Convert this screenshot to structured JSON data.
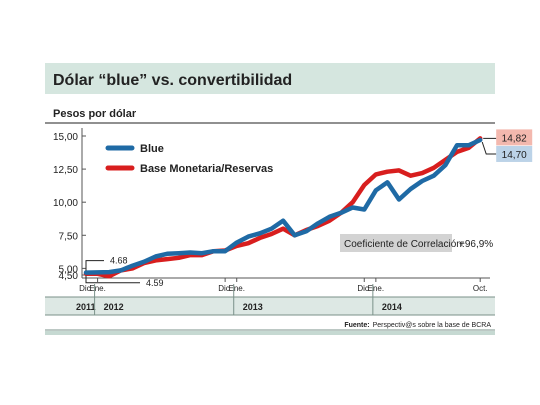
{
  "chart_data": {
    "type": "line",
    "title": "Dólar “blue” vs. convertibilidad",
    "ylabel": "Pesos por dólar",
    "ylim": [
      4.5,
      15.0
    ],
    "yticks": [
      15.0,
      12.5,
      10.0,
      7.5,
      5.0,
      4.5
    ],
    "ytick_labels": [
      "15,00",
      "12,50",
      "10,00",
      "7,50",
      "5,00",
      "4,50"
    ],
    "x_unit": "months since Dec 2011",
    "xlim": [
      0,
      34.5
    ],
    "x_month_labels": [
      {
        "x": 0,
        "label": "Dic."
      },
      {
        "x": 1,
        "label": "Ene."
      },
      {
        "x": 12,
        "label": "Dic."
      },
      {
        "x": 13,
        "label": "Ene."
      },
      {
        "x": 24,
        "label": "Dic."
      },
      {
        "x": 25,
        "label": "Ene."
      },
      {
        "x": 34,
        "label": "Oct."
      }
    ],
    "x_year_labels": [
      {
        "from": 0,
        "to": 1,
        "label": "2011"
      },
      {
        "from": 1,
        "to": 13,
        "label": "2012"
      },
      {
        "from": 13,
        "to": 25,
        "label": "2013"
      },
      {
        "from": 25,
        "to": 34.5,
        "label": "2014"
      }
    ],
    "series": [
      {
        "name": "Blue",
        "color": "#1f6aa5",
        "points": [
          [
            0,
            4.68
          ],
          [
            1,
            4.7
          ],
          [
            2,
            4.72
          ],
          [
            3,
            4.85
          ],
          [
            4,
            5.2
          ],
          [
            5,
            5.5
          ],
          [
            6,
            5.9
          ],
          [
            7,
            6.1
          ],
          [
            8,
            6.15
          ],
          [
            9,
            6.2
          ],
          [
            10,
            6.15
          ],
          [
            11,
            6.3
          ],
          [
            12,
            6.3
          ],
          [
            13,
            6.95
          ],
          [
            14,
            7.4
          ],
          [
            15,
            7.65
          ],
          [
            16,
            8.0
          ],
          [
            17,
            8.6
          ],
          [
            18,
            7.5
          ],
          [
            19,
            7.8
          ],
          [
            20,
            8.4
          ],
          [
            21,
            8.9
          ],
          [
            22,
            9.2
          ],
          [
            23,
            9.6
          ],
          [
            24,
            9.45
          ],
          [
            25,
            10.9
          ],
          [
            26,
            11.5
          ],
          [
            27,
            10.2
          ],
          [
            28,
            11.0
          ],
          [
            29,
            11.6
          ],
          [
            30,
            12.0
          ],
          [
            31,
            12.8
          ],
          [
            32,
            14.3
          ],
          [
            33,
            14.3
          ],
          [
            34,
            14.7
          ]
        ]
      },
      {
        "name": "Base Monetaria/Reservas",
        "color": "#d81e1e",
        "points": [
          [
            0,
            4.59
          ],
          [
            1,
            4.59
          ],
          [
            2,
            4.4
          ],
          [
            3,
            4.85
          ],
          [
            4,
            5.0
          ],
          [
            5,
            5.4
          ],
          [
            6,
            5.6
          ],
          [
            7,
            5.7
          ],
          [
            8,
            5.8
          ],
          [
            9,
            6.0
          ],
          [
            10,
            6.0
          ],
          [
            11,
            6.3
          ],
          [
            12,
            6.35
          ],
          [
            13,
            6.7
          ],
          [
            14,
            6.9
          ],
          [
            15,
            7.3
          ],
          [
            16,
            7.6
          ],
          [
            17,
            8.0
          ],
          [
            18,
            7.5
          ],
          [
            19,
            7.9
          ],
          [
            20,
            8.2
          ],
          [
            21,
            8.6
          ],
          [
            22,
            9.2
          ],
          [
            23,
            10.0
          ],
          [
            24,
            11.3
          ],
          [
            25,
            12.1
          ],
          [
            26,
            12.3
          ],
          [
            27,
            12.4
          ],
          [
            28,
            12.0
          ],
          [
            29,
            12.2
          ],
          [
            30,
            12.6
          ],
          [
            31,
            13.2
          ],
          [
            32,
            13.8
          ],
          [
            33,
            14.1
          ],
          [
            34,
            14.82
          ]
        ]
      }
    ],
    "annotations": [
      {
        "name": "blue-start",
        "text": "4.68",
        "series": 0,
        "point": 0,
        "style": "plain"
      },
      {
        "name": "red-start",
        "text": "4.59",
        "series": 1,
        "point": 0,
        "style": "plain"
      },
      {
        "name": "red-end",
        "text": "14,82",
        "series": 1,
        "point": 34,
        "style": "box",
        "box_color": "#f3b8ae"
      },
      {
        "name": "blue-end",
        "text": "14,70",
        "series": 0,
        "point": 34,
        "style": "box",
        "box_color": "#bcd3e8"
      }
    ],
    "correlation": {
      "label": "Coeficiente de Correlación:",
      "value": "+96,9%"
    },
    "legend_position": "top-left",
    "grid": false
  },
  "footer": {
    "source_label": "Fuente:",
    "source_text": "Perspectiv@s sobre la base de BCRA"
  },
  "colors": {
    "header_bg": "#d5e6df",
    "band_bg": "#dde8e4",
    "rule": "#7a9189",
    "text": "#222222"
  }
}
